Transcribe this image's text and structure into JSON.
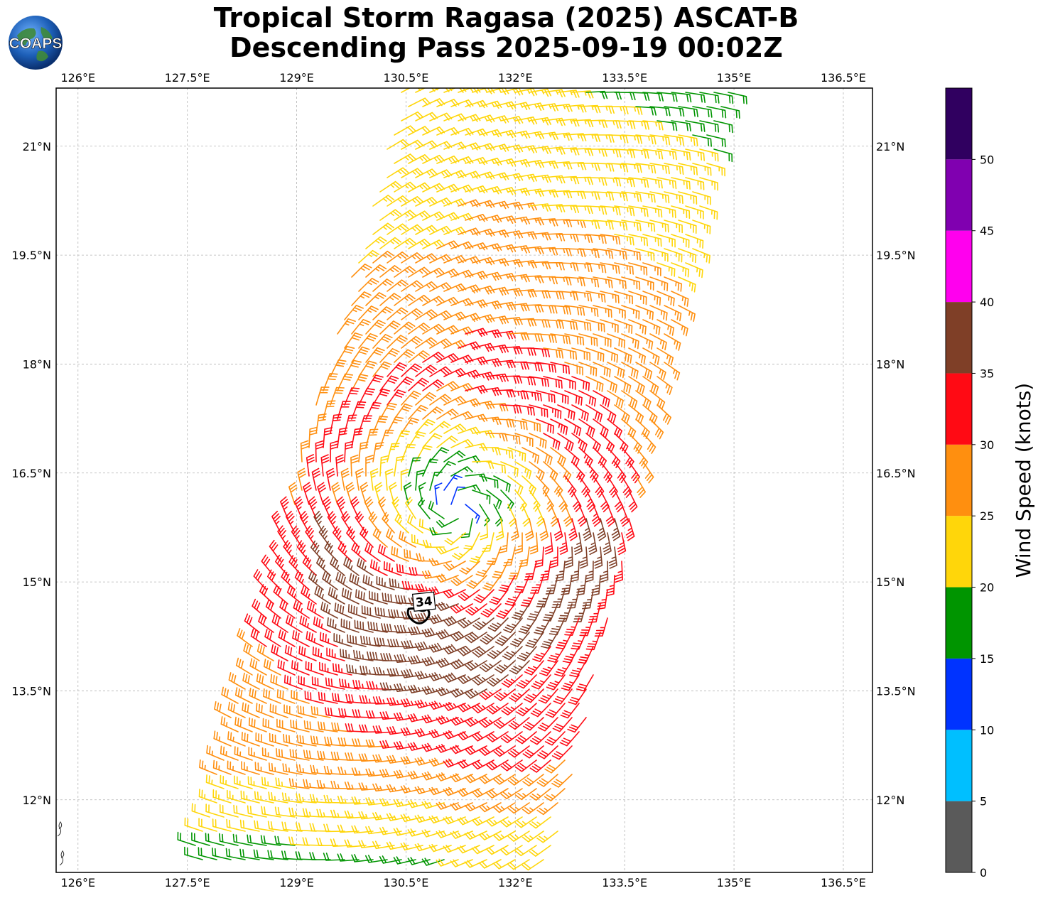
{
  "title": {
    "line1": "Tropical Storm Ragasa (2025) ASCAT-B",
    "line2": "Descending Pass 2025-09-19 00:02Z"
  },
  "logo": {
    "text": "COAPS",
    "icon": "globe-icon"
  },
  "map": {
    "lon_range": [
      125.7,
      136.9
    ],
    "lat_range": [
      11.0,
      21.8
    ],
    "lon_ticks": [
      {
        "value": 126.0,
        "label": "126°E"
      },
      {
        "value": 127.5,
        "label": "127.5°E"
      },
      {
        "value": 129.0,
        "label": "129°E"
      },
      {
        "value": 130.5,
        "label": "130.5°E"
      },
      {
        "value": 132.0,
        "label": "132°E"
      },
      {
        "value": 133.5,
        "label": "133.5°E"
      },
      {
        "value": 135.0,
        "label": "135°E"
      },
      {
        "value": 136.5,
        "label": "136.5°E"
      }
    ],
    "lat_ticks": [
      {
        "value": 21.0,
        "label": "21°N"
      },
      {
        "value": 19.5,
        "label": "19.5°N"
      },
      {
        "value": 18.0,
        "label": "18°N"
      },
      {
        "value": 16.5,
        "label": "16.5°N"
      },
      {
        "value": 15.0,
        "label": "15°N"
      },
      {
        "value": 13.5,
        "label": "13.5°N"
      },
      {
        "value": 12.0,
        "label": "12°N"
      }
    ],
    "grid": true,
    "swath_corners": [
      [
        130.45,
        21.8
      ],
      [
        134.95,
        21.8
      ],
      [
        132.5,
        11.0
      ],
      [
        127.5,
        11.0
      ]
    ],
    "storm_center": [
      131.2,
      16.0
    ],
    "wind_radii_contour": {
      "label": "34",
      "center": [
        130.75,
        14.55
      ],
      "label_position": [
        130.75,
        14.7
      ]
    },
    "coast_features": [
      {
        "lon": 125.75,
        "lat": 11.1
      },
      {
        "lon": 125.72,
        "lat": 11.5
      }
    ]
  },
  "colorbar": {
    "label": "Wind Speed (knots)",
    "range": [
      0,
      55
    ],
    "ticks": [
      "0",
      "5",
      "10",
      "15",
      "20",
      "25",
      "30",
      "35",
      "40",
      "45",
      "50"
    ],
    "bins": [
      {
        "min": 0,
        "max": 5,
        "color": "#5a5a5a"
      },
      {
        "min": 5,
        "max": 10,
        "color": "#00bfff"
      },
      {
        "min": 10,
        "max": 15,
        "color": "#0033ff"
      },
      {
        "min": 15,
        "max": 20,
        "color": "#009500"
      },
      {
        "min": 20,
        "max": 25,
        "color": "#ffd60a"
      },
      {
        "min": 25,
        "max": 30,
        "color": "#ff8f0f"
      },
      {
        "min": 30,
        "max": 35,
        "color": "#ff0a14"
      },
      {
        "min": 35,
        "max": 40,
        "color": "#7f3f27"
      },
      {
        "min": 40,
        "max": 45,
        "color": "#ff00ee"
      },
      {
        "min": 45,
        "max": 50,
        "color": "#8000b0"
      },
      {
        "min": 50,
        "max": 55,
        "color": "#300060"
      }
    ]
  },
  "wind_field": {
    "type": "barbs",
    "units": "knots",
    "vortex": {
      "center": [
        131.2,
        16.0
      ],
      "rmw_deg": 1.8,
      "vmax_kt": 33,
      "far_kt": 20,
      "ambient_kt": 12
    },
    "rain_band_peak": {
      "center": [
        130.6,
        14.4
      ],
      "boost_kt": 8
    }
  }
}
